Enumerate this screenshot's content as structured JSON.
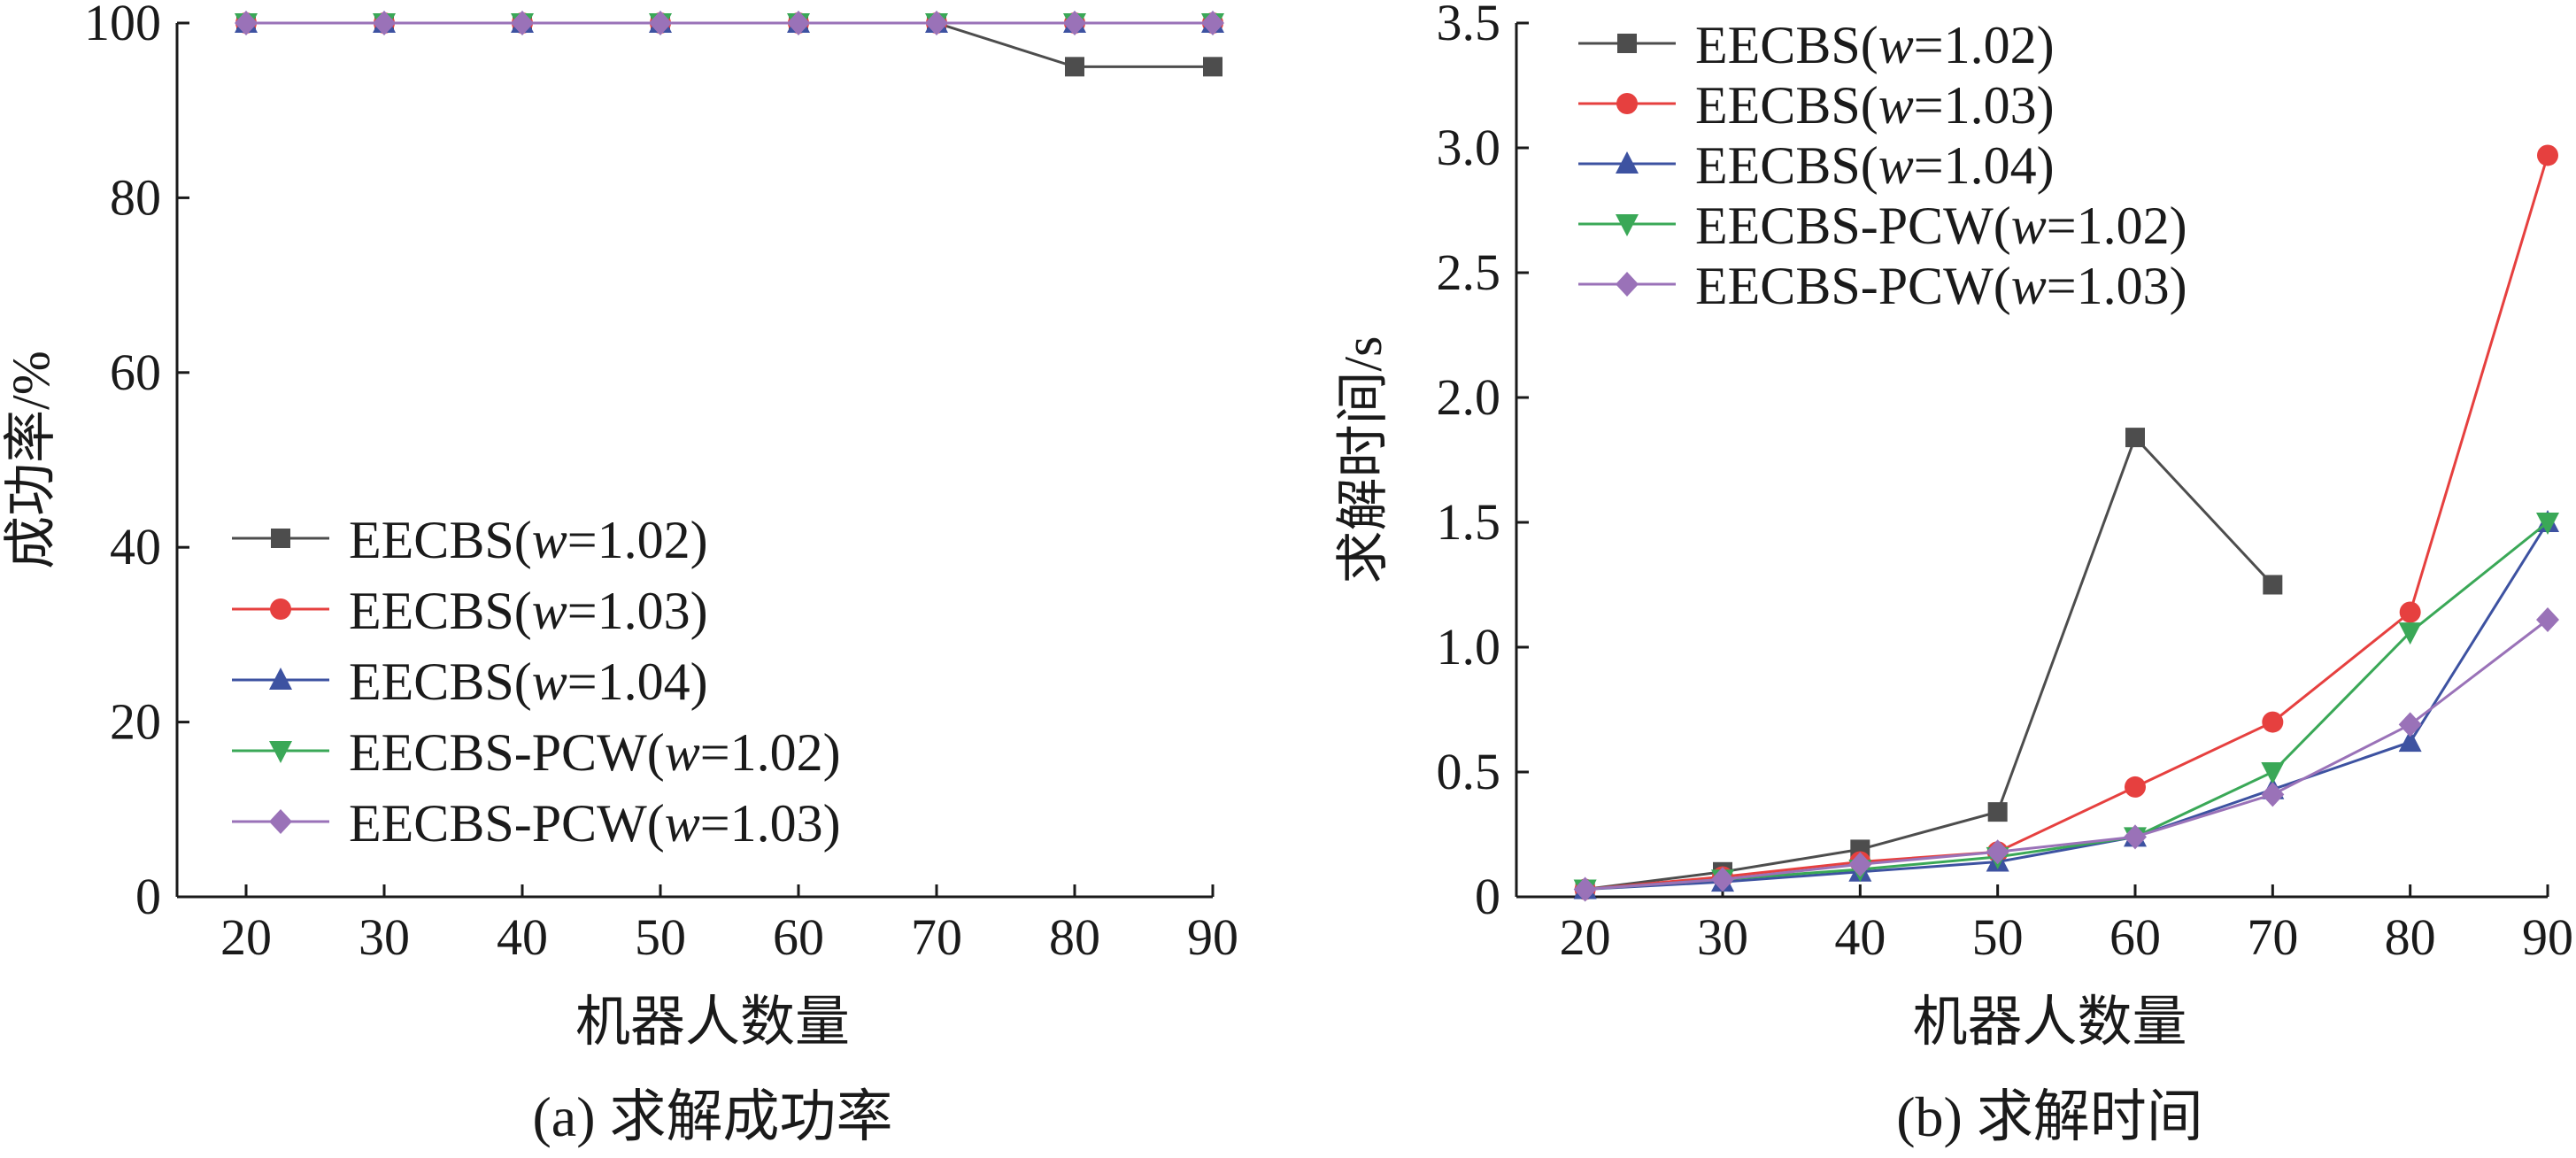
{
  "colors": {
    "EECBS(w=1.02)": "#4d4d4d",
    "EECBS(w=1.03)": "#e6403f",
    "EECBS(w=1.04)": "#3d52a1",
    "EECBS-PCW(w=1.02)": "#3aa857",
    "EECBS-PCW(w=1.03)": "#9a72b8"
  },
  "markers": {
    "EECBS(w=1.02)": "square",
    "EECBS(w=1.03)": "circle",
    "EECBS(w=1.04)": "triangle-up",
    "EECBS-PCW(w=1.02)": "triangle-down",
    "EECBS-PCW(w=1.03)": "diamond"
  },
  "chart_data": [
    {
      "type": "line",
      "caption": "(a) 求解成功率",
      "xlabel": "机器人数量",
      "ylabel": "成功率/%",
      "x": [
        20,
        30,
        40,
        50,
        60,
        70,
        80,
        90
      ],
      "xlim": [
        15,
        90
      ],
      "ylim": [
        0,
        100
      ],
      "xticks": [
        "20",
        "30",
        "40",
        "50",
        "60",
        "70",
        "80",
        "90"
      ],
      "yticks": [
        "0",
        "20",
        "40",
        "60",
        "80",
        "100"
      ],
      "legend_position": "lower-left",
      "series": [
        {
          "name": "EECBS(w=1.02)",
          "name_prefix": "EECBS(",
          "name_var": "w",
          "name_suffix": "=1.02)",
          "values": [
            100,
            100,
            100,
            100,
            100,
            100,
            95,
            95
          ]
        },
        {
          "name": "EECBS(w=1.03)",
          "name_prefix": "EECBS(",
          "name_var": "w",
          "name_suffix": "=1.03)",
          "values": [
            100,
            100,
            100,
            100,
            100,
            100,
            100,
            100
          ]
        },
        {
          "name": "EECBS(w=1.04)",
          "name_prefix": "EECBS(",
          "name_var": "w",
          "name_suffix": "=1.04)",
          "values": [
            100,
            100,
            100,
            100,
            100,
            100,
            100,
            100
          ]
        },
        {
          "name": "EECBS-PCW(w=1.02)",
          "name_prefix": "EECBS-PCW(",
          "name_var": "w",
          "name_suffix": "=1.02)",
          "values": [
            100,
            100,
            100,
            100,
            100,
            100,
            100,
            100
          ]
        },
        {
          "name": "EECBS-PCW(w=1.03)",
          "name_prefix": "EECBS-PCW(",
          "name_var": "w",
          "name_suffix": "=1.03)",
          "values": [
            100,
            100,
            100,
            100,
            100,
            100,
            100,
            100
          ]
        }
      ]
    },
    {
      "type": "line",
      "caption": "(b) 求解时间",
      "xlabel": "机器人数量",
      "ylabel": "求解时间/s",
      "x": [
        20,
        30,
        40,
        50,
        60,
        70,
        80,
        90
      ],
      "xlim": [
        15,
        90
      ],
      "ylim": [
        0,
        3.5
      ],
      "xticks": [
        "20",
        "30",
        "40",
        "50",
        "60",
        "70",
        "80",
        "90"
      ],
      "yticks": [
        "0",
        "0.5",
        "1.0",
        "1.5",
        "2.0",
        "2.5",
        "3.0",
        "3.5"
      ],
      "legend_position": "upper-left",
      "series": [
        {
          "name": "EECBS(w=1.02)",
          "name_prefix": "EECBS(",
          "name_var": "w",
          "name_suffix": "=1.02)",
          "values": [
            0.03,
            0.1,
            0.19,
            0.34,
            1.84,
            1.25,
            null,
            null
          ]
        },
        {
          "name": "EECBS(w=1.03)",
          "name_prefix": "EECBS(",
          "name_var": "w",
          "name_suffix": "=1.03)",
          "values": [
            0.03,
            0.08,
            0.14,
            0.18,
            0.44,
            0.7,
            1.14,
            2.97
          ]
        },
        {
          "name": "EECBS(w=1.04)",
          "name_prefix": "EECBS(",
          "name_var": "w",
          "name_suffix": "=1.04)",
          "values": [
            0.03,
            0.06,
            0.1,
            0.14,
            0.24,
            0.43,
            0.62,
            1.5
          ]
        },
        {
          "name": "EECBS-PCW(w=1.02)",
          "name_prefix": "EECBS-PCW(",
          "name_var": "w",
          "name_suffix": "=1.02)",
          "values": [
            0.03,
            0.07,
            0.11,
            0.16,
            0.24,
            0.5,
            1.06,
            1.5
          ]
        },
        {
          "name": "EECBS-PCW(w=1.03)",
          "name_prefix": "EECBS-PCW(",
          "name_var": "w",
          "name_suffix": "=1.03)",
          "values": [
            0.03,
            0.07,
            0.13,
            0.18,
            0.24,
            0.41,
            0.69,
            1.11
          ]
        }
      ]
    }
  ]
}
